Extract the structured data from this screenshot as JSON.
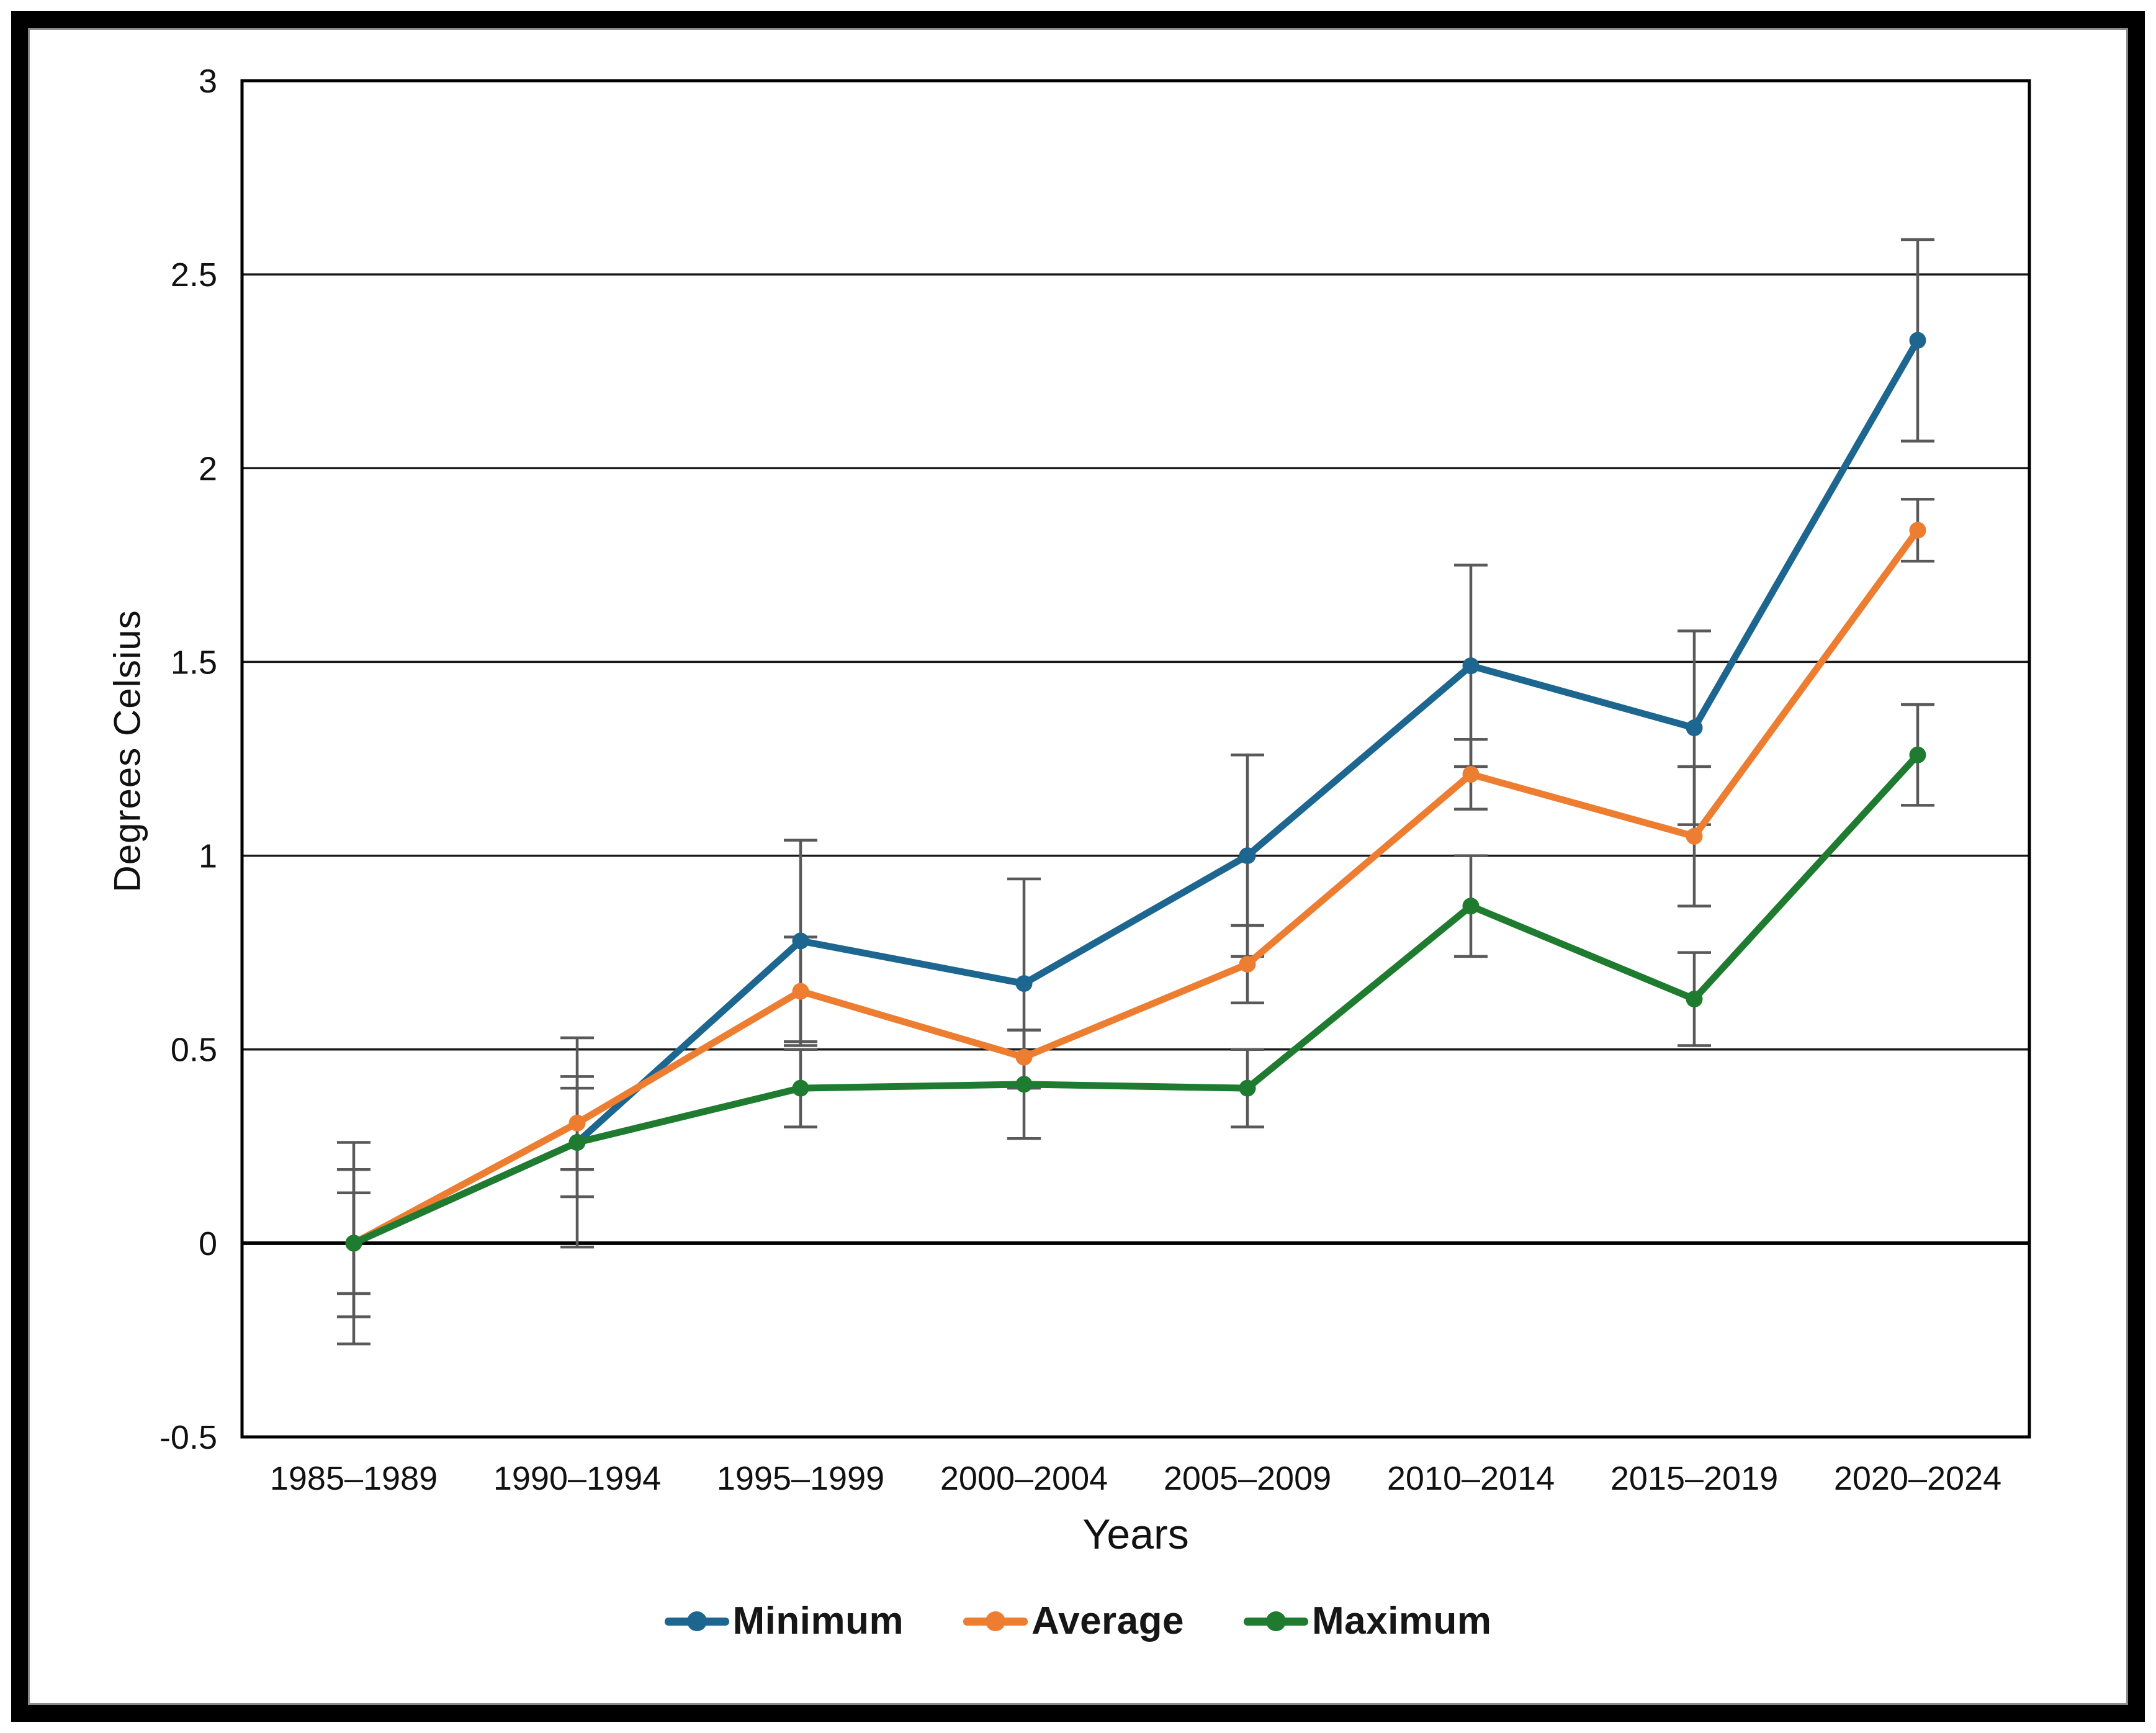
{
  "chart_data": {
    "type": "line",
    "title": "",
    "xlabel": "Years",
    "ylabel": "Degrees Celsius",
    "categories": [
      "1985–1989",
      "1990–1994",
      "1995–1999",
      "2000–2004",
      "2005–2009",
      "2010–2014",
      "2015–2019",
      "2020–2024"
    ],
    "yticks": [
      "3",
      "2.5",
      "2",
      "1.5",
      "1",
      "0.5",
      "0",
      "-0.5"
    ],
    "ylim": [
      -0.5,
      3
    ],
    "grid": true,
    "legend_position": "bottom",
    "error_bar_color": "#595959",
    "axis_color": "#000000",
    "gridline_color": "#1a1a1a",
    "series": [
      {
        "name": "Minimum",
        "color": "#1C6690",
        "values": [
          0.0,
          0.26,
          0.78,
          0.67,
          1.0,
          1.49,
          1.33,
          2.33
        ],
        "errors": [
          0.26,
          0.27,
          0.26,
          0.27,
          0.26,
          0.26,
          0.25,
          0.26
        ]
      },
      {
        "name": "Average",
        "color": "#ED7D31",
        "values": [
          0.0,
          0.31,
          0.65,
          0.48,
          0.72,
          1.21,
          1.05,
          1.84
        ],
        "errors": [
          0.19,
          0.12,
          0.14,
          0.07,
          0.1,
          0.09,
          0.18,
          0.08
        ]
      },
      {
        "name": "Maximum",
        "color": "#1E7B2F",
        "values": [
          0.0,
          0.26,
          0.4,
          0.41,
          0.4,
          0.87,
          0.63,
          1.26
        ],
        "errors": [
          0.13,
          0.14,
          0.1,
          0.14,
          0.1,
          0.13,
          0.12,
          0.13
        ]
      }
    ]
  }
}
